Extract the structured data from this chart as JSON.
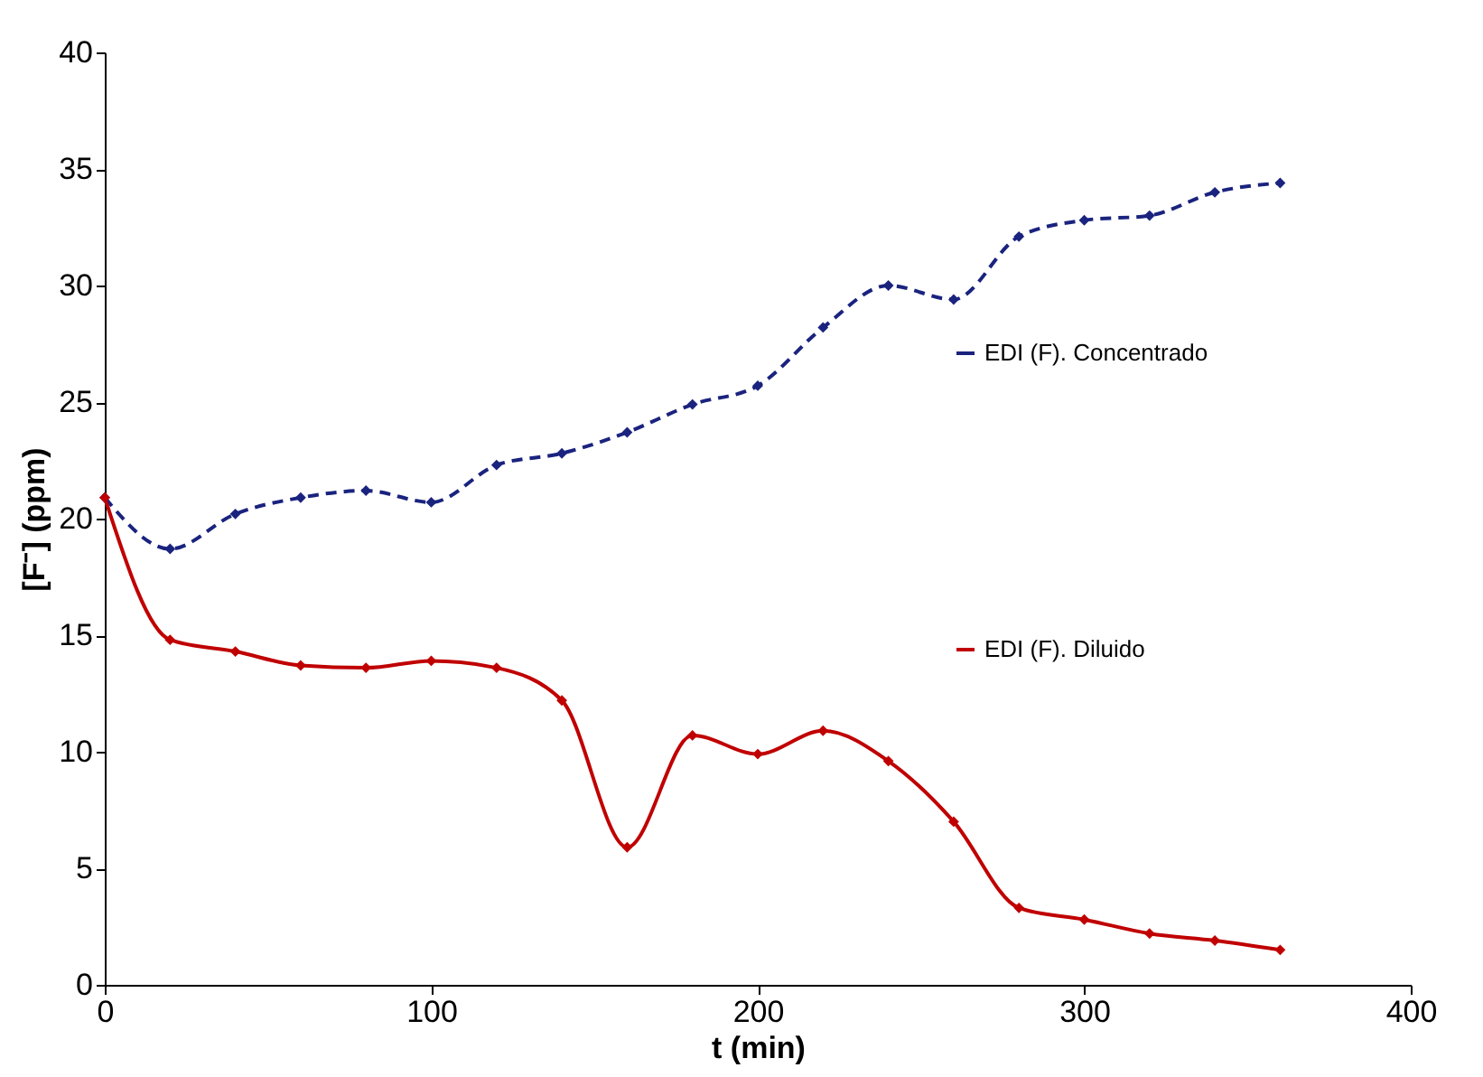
{
  "chart_data": {
    "type": "line",
    "xlabel": "t  (min)",
    "ylabel": "[F⁻] (ppm)",
    "x": [
      0,
      20,
      40,
      60,
      80,
      100,
      120,
      140,
      160,
      180,
      200,
      220,
      240,
      260,
      280,
      300,
      320,
      340,
      360
    ],
    "series": [
      {
        "name": "EDI (F). Concentrado",
        "color": "#1a237e",
        "line_style": "dashed",
        "values": [
          20.9,
          18.7,
          20.2,
          20.9,
          21.2,
          20.7,
          22.3,
          22.8,
          23.7,
          24.9,
          25.7,
          28.2,
          30.0,
          29.4,
          32.1,
          32.8,
          33.0,
          34.0,
          34.4
        ]
      },
      {
        "name": "EDI (F). Diluido",
        "color": "#c00000",
        "line_style": "solid",
        "values": [
          20.9,
          14.8,
          14.3,
          13.7,
          13.6,
          13.9,
          13.6,
          12.2,
          5.9,
          10.7,
          9.9,
          10.9,
          9.6,
          7.0,
          3.3,
          2.8,
          2.2,
          1.9,
          1.5
        ]
      }
    ],
    "xlim": [
      0,
      400
    ],
    "xticks": [
      0,
      100,
      200,
      300,
      400
    ],
    "ylim": [
      0,
      40
    ],
    "yticks": [
      0,
      5,
      10,
      15,
      20,
      25,
      30,
      35,
      40
    ],
    "marker": "diamond",
    "legend": "right",
    "grid": false
  }
}
